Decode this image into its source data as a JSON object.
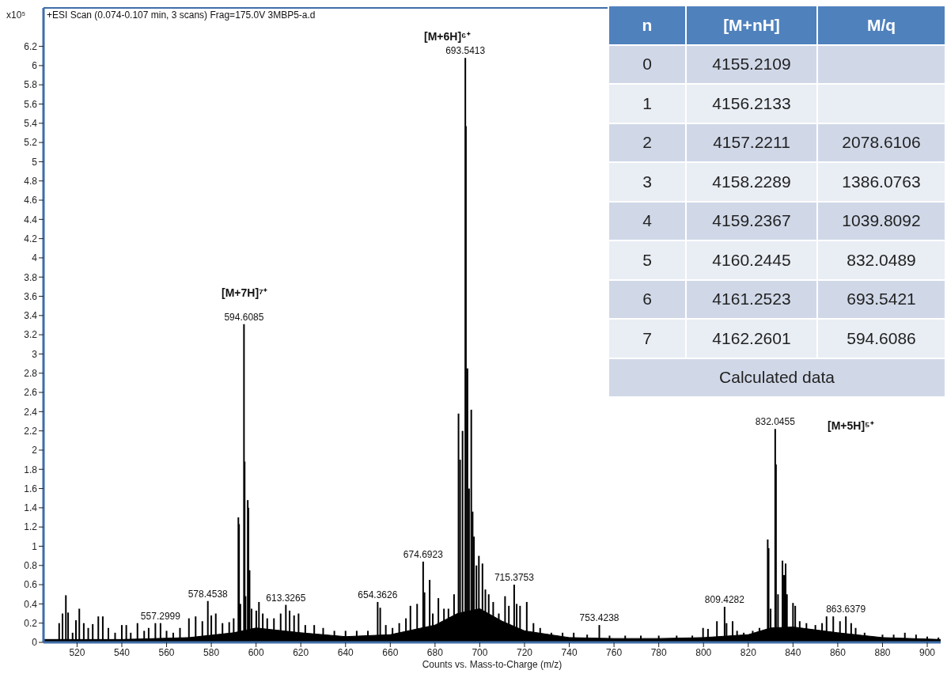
{
  "chart_data": {
    "type": "bar",
    "title": "+ESI Scan (0.074-0.107 min, 3 scans) Frag=175.0V 3MBP5-a.d",
    "xlabel": "Counts vs. Mass-to-Charge (m/z)",
    "ylabel": "x10⁵",
    "xlim": [
      505,
      906
    ],
    "xticks": [
      520,
      540,
      560,
      580,
      600,
      620,
      640,
      660,
      680,
      700,
      720,
      740,
      760,
      780,
      800,
      820,
      840,
      860,
      880,
      900
    ],
    "ylim": [
      0,
      6.6
    ],
    "yticks": [
      0,
      0.2,
      0.4,
      0.6,
      0.8,
      1,
      1.2,
      1.4,
      1.6,
      1.8,
      2,
      2.2,
      2.4,
      2.6,
      2.8,
      3,
      3.2,
      3.4,
      3.6,
      3.8,
      4,
      4.2,
      4.4,
      4.6,
      4.8,
      5,
      5.2,
      5.4,
      5.6,
      5.8,
      6,
      6.2
    ],
    "series": [
      {
        "type": "area",
        "color": "#000000",
        "x": [
          505,
          540,
          570,
          590,
          600,
          620,
          640,
          660,
          680,
          690,
          700,
          710,
          720,
          740,
          760,
          780,
          800,
          820,
          830,
          840,
          860,
          880,
          906
        ],
        "values": [
          0.03,
          0.03,
          0.05,
          0.1,
          0.15,
          0.1,
          0.06,
          0.08,
          0.18,
          0.3,
          0.35,
          0.22,
          0.12,
          0.05,
          0.04,
          0.04,
          0.05,
          0.08,
          0.15,
          0.16,
          0.1,
          0.05,
          0.03
        ]
      },
      {
        "color": "#000000",
        "x": [
          512,
          513.5,
          515,
          516,
          518,
          519.5,
          521,
          523,
          525,
          527,
          529.5,
          531.5,
          534,
          537,
          540,
          542,
          544,
          547,
          550,
          552,
          555,
          557.2999,
          560,
          563,
          566,
          570,
          573,
          576,
          578.4538,
          580,
          582,
          585,
          588,
          590,
          592.1,
          592.4,
          593,
          594.6085,
          594.9,
          595.3,
          596.3,
          596.6,
          597.1,
          598,
          600.1,
          601.3,
          603,
          605,
          608,
          611,
          613.3265,
          615,
          617,
          619,
          622,
          626,
          630,
          635,
          640,
          645,
          650,
          654.3626,
          655.5,
          658,
          661,
          664,
          667,
          669,
          672,
          674.6923,
          675.3,
          677.6,
          679,
          681.5,
          684,
          686,
          688.5,
          690.5,
          691.2,
          692.3,
          693.5413,
          693.8,
          694.5,
          695.2,
          696.2,
          696.8,
          697.4,
          698.5,
          699.6,
          701.2,
          702.5,
          704,
          706,
          708.5,
          711.3,
          713,
          715.3753,
          716.5,
          718,
          721,
          724,
          727,
          732,
          737,
          742,
          748,
          753.4238,
          758,
          765,
          772,
          780,
          788,
          795,
          799.8,
          802,
          806,
          809.4282,
          810.3,
          813,
          815,
          818,
          822,
          825,
          828.7,
          829.1,
          830,
          832.0455,
          832.4,
          833.3,
          835.3,
          836,
          836.7,
          837.3,
          840,
          841,
          843,
          846,
          850,
          853,
          855,
          858,
          861,
          863.6379,
          866,
          868,
          872,
          880,
          885,
          890,
          895,
          900,
          905
        ],
        "values": [
          0.2,
          0.3,
          0.49,
          0.31,
          0.1,
          0.23,
          0.35,
          0.2,
          0.15,
          0.19,
          0.27,
          0.27,
          0.15,
          0.1,
          0.18,
          0.18,
          0.1,
          0.2,
          0.12,
          0.15,
          0.2,
          0.2,
          0.12,
          0.1,
          0.15,
          0.25,
          0.27,
          0.22,
          0.43,
          0.28,
          0.3,
          0.2,
          0.21,
          0.25,
          1.3,
          1.23,
          0.4,
          3.31,
          1.88,
          0.48,
          1.48,
          1.4,
          0.75,
          0.35,
          0.33,
          0.42,
          0.3,
          0.25,
          0.25,
          0.3,
          0.39,
          0.33,
          0.28,
          0.3,
          0.18,
          0.18,
          0.15,
          0.12,
          0.12,
          0.12,
          0.12,
          0.42,
          0.36,
          0.18,
          0.15,
          0.2,
          0.25,
          0.38,
          0.4,
          0.84,
          0.52,
          0.65,
          0.3,
          0.46,
          0.35,
          0.35,
          0.5,
          2.38,
          1.9,
          2.2,
          6.08,
          5.37,
          2.85,
          1.6,
          2.42,
          1.36,
          1.1,
          0.8,
          0.9,
          0.82,
          0.55,
          0.5,
          0.42,
          0.3,
          0.48,
          0.38,
          0.6,
          0.4,
          0.38,
          0.42,
          0.2,
          0.15,
          0.1,
          0.1,
          0.1,
          0.08,
          0.18,
          0.07,
          0.07,
          0.07,
          0.07,
          0.07,
          0.07,
          0.15,
          0.14,
          0.22,
          0.37,
          0.2,
          0.22,
          0.12,
          0.1,
          0.12,
          0.15,
          1.07,
          0.98,
          0.35,
          2.22,
          1.85,
          0.5,
          0.85,
          0.7,
          0.82,
          0.5,
          0.41,
          0.38,
          0.22,
          0.2,
          0.18,
          0.2,
          0.27,
          0.27,
          0.22,
          0.27,
          0.2,
          0.15,
          0.1,
          0.08,
          0.08,
          0.1,
          0.08,
          0.06,
          0.05
        ]
      }
    ],
    "annotations": [
      "[M+7H]⁷⁺",
      "[M+6H]⁶⁺",
      "[M+5H]⁵⁺",
      {
        "text": "594.6085",
        "x": 594.6085,
        "y": 3.31
      },
      {
        "text": "693.5413",
        "x": 693.5413,
        "y": 6.08
      },
      {
        "text": "832.0455",
        "x": 832.0455,
        "y": 2.22
      },
      {
        "text": "557.2999",
        "x": 557.2999,
        "y": 0.2
      },
      {
        "text": "578.4538",
        "x": 578.4538,
        "y": 0.43
      },
      {
        "text": "613.3265",
        "x": 613.3265,
        "y": 0.39
      },
      {
        "text": "654.3626",
        "x": 654.3626,
        "y": 0.42
      },
      {
        "text": "674.6923",
        "x": 674.6923,
        "y": 0.84
      },
      {
        "text": "715.3753",
        "x": 715.3753,
        "y": 0.6
      },
      {
        "text": "753.4238",
        "x": 753.4238,
        "y": 0.18
      },
      {
        "text": "809.4282",
        "x": 809.4282,
        "y": 0.37
      },
      {
        "text": "863.6379",
        "x": 863.6379,
        "y": 0.27
      },
      "n",
      "[M+nH]",
      "M/q",
      "0",
      "4155.2109",
      "1",
      "4156.2133",
      "2",
      "4157.2211",
      "2078.6106",
      "3",
      "4158.2289",
      "1386.0763",
      "4",
      "4159.2367",
      "1039.8092",
      "5",
      "4160.2445",
      "832.0489",
      "6",
      "4161.2523",
      "693.5421",
      "7",
      "4162.2601",
      "594.6086",
      "Calculated data"
    ]
  }
}
